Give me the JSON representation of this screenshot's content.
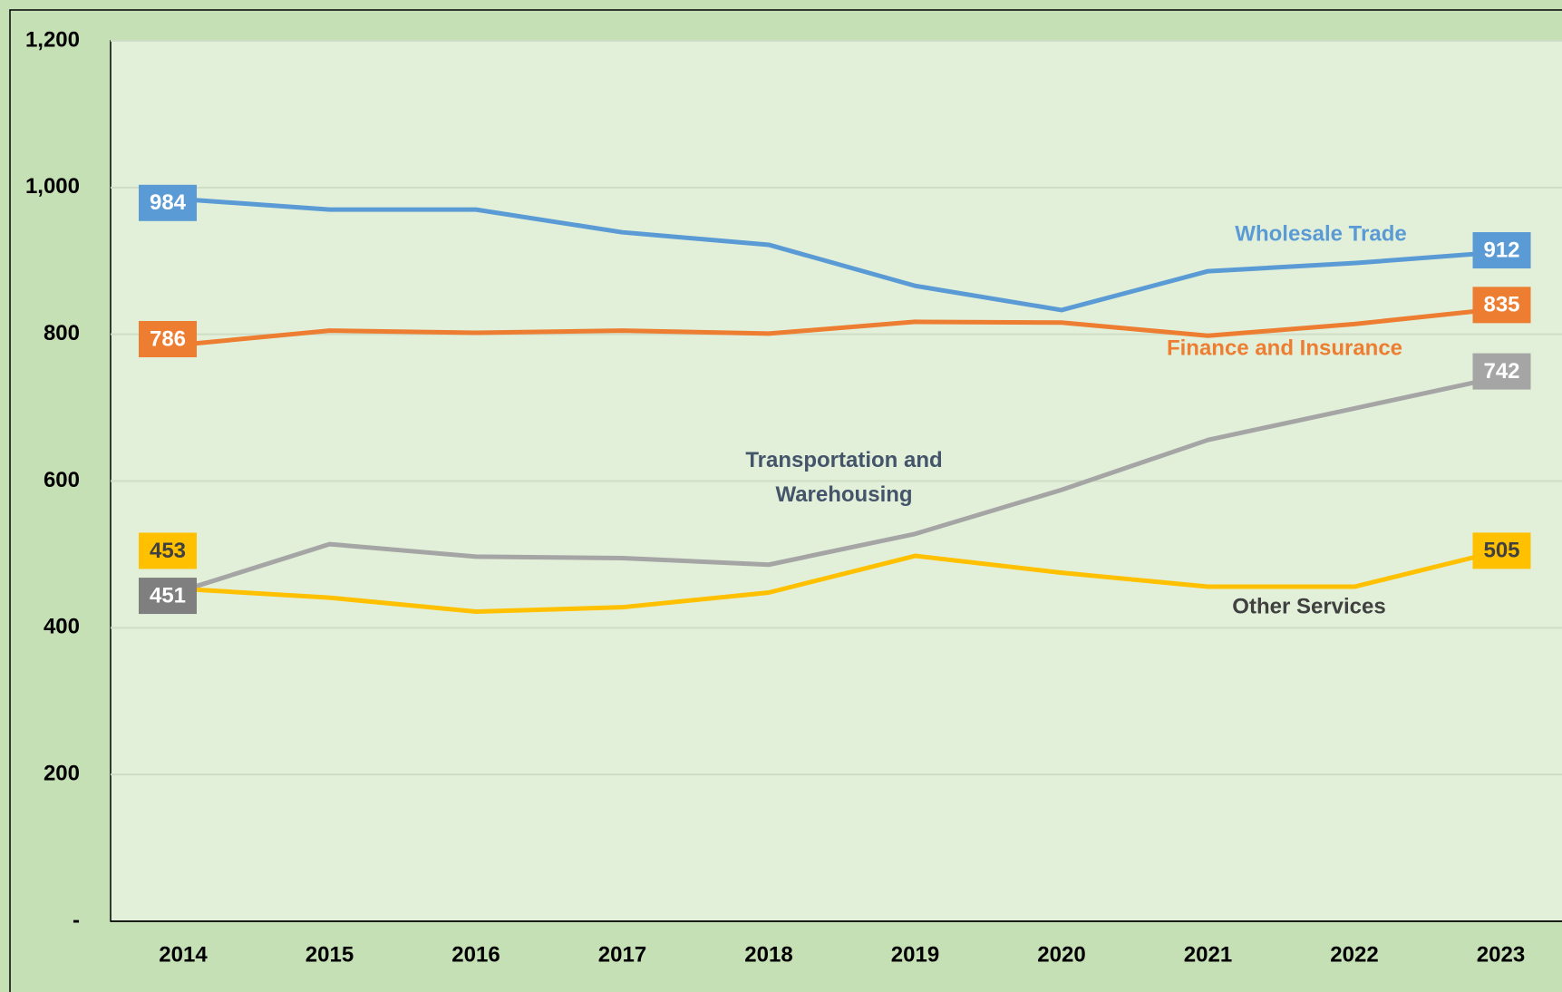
{
  "chart_data": {
    "type": "line",
    "categories": [
      "2014",
      "2015",
      "2016",
      "2017",
      "2018",
      "2019",
      "2020",
      "2021",
      "2022",
      "2023"
    ],
    "ylim": [
      0,
      1200
    ],
    "yticks": [
      {
        "value": 0,
        "label": "-"
      },
      200,
      400,
      600,
      800,
      {
        "value": 1000,
        "label": "1,000"
      },
      {
        "value": 1200,
        "label": "1,200"
      }
    ],
    "grid": true,
    "series": [
      {
        "name": "Wholesale Trade",
        "color": "#5b9bd5",
        "name_color": "#5b9bd5",
        "values": [
          984,
          970,
          970,
          939,
          922,
          866,
          833,
          886,
          897,
          912
        ]
      },
      {
        "name": "Finance and Insurance",
        "color": "#ed7d31",
        "name_color": "#ed7d31",
        "values": [
          786,
          805,
          802,
          805,
          801,
          817,
          816,
          798,
          814,
          835
        ]
      },
      {
        "name": "Transportation and Warehousing",
        "color": "#a5a5a5",
        "name_color": "#44546a",
        "values": [
          451,
          514,
          497,
          495,
          486,
          528,
          588,
          656,
          699,
          742
        ]
      },
      {
        "name": "Other Services",
        "color": "#ffc000",
        "name_color": "#404040",
        "values": [
          453,
          441,
          422,
          428,
          448,
          498,
          475,
          456,
          456,
          505
        ]
      }
    ]
  }
}
